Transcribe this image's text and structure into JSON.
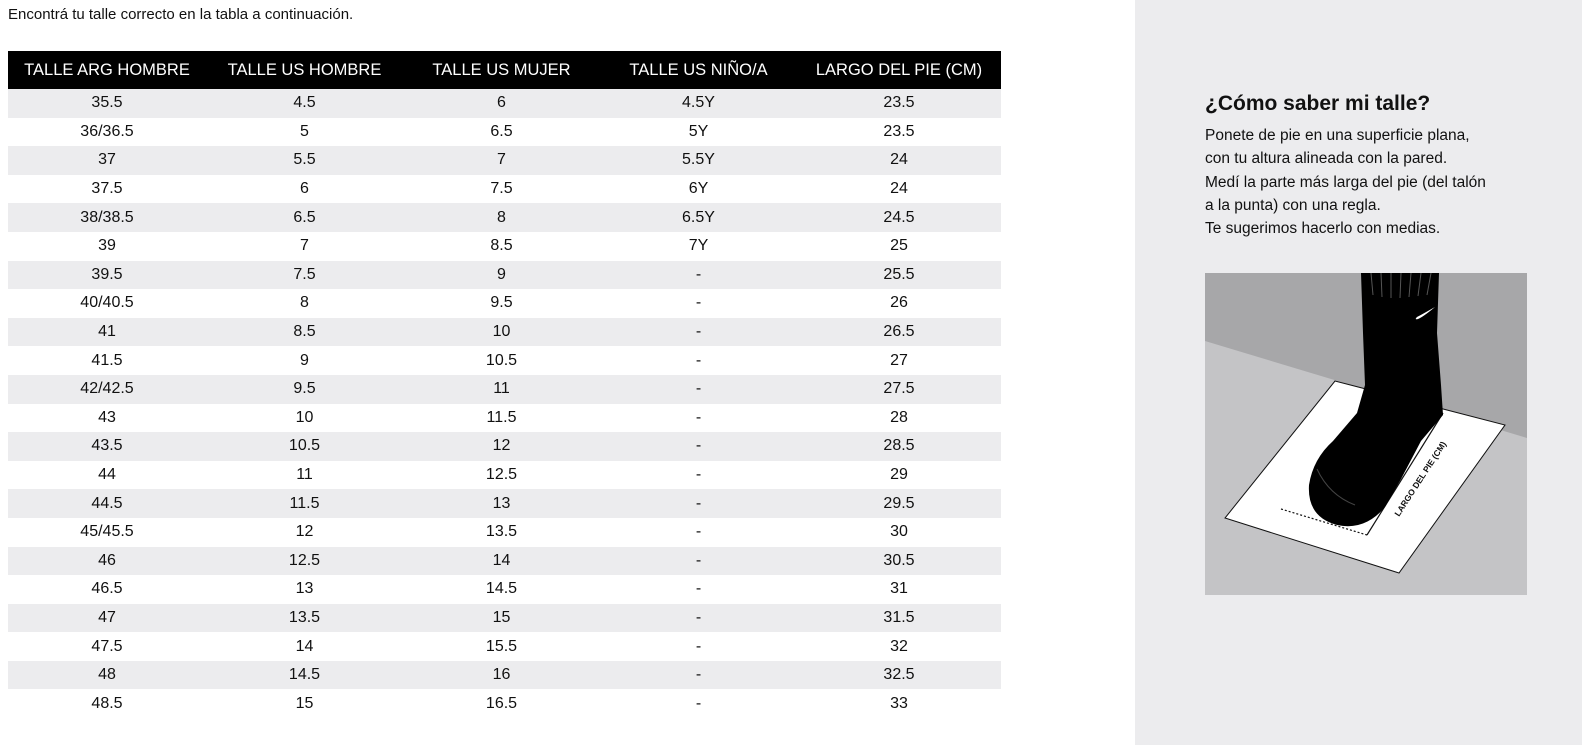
{
  "intro_text": "Encontrá tu talle correcto en la tabla a continuación.",
  "table": {
    "headers": [
      "TALLE ARG HOMBRE",
      "TALLE US HOMBRE",
      "TALLE US MUJER",
      "TALLE US NIÑO/A",
      "LARGO DEL PIE (CM)"
    ],
    "rows": [
      [
        "35.5",
        "4.5",
        "6",
        "4.5Y",
        "23.5"
      ],
      [
        "36/36.5",
        "5",
        "6.5",
        "5Y",
        "23.5"
      ],
      [
        "37",
        "5.5",
        "7",
        "5.5Y",
        "24"
      ],
      [
        "37.5",
        "6",
        "7.5",
        "6Y",
        "24"
      ],
      [
        "38/38.5",
        "6.5",
        "8",
        "6.5Y",
        "24.5"
      ],
      [
        "39",
        "7",
        "8.5",
        "7Y",
        "25"
      ],
      [
        "39.5",
        "7.5",
        "9",
        "-",
        "25.5"
      ],
      [
        "40/40.5",
        "8",
        "9.5",
        "-",
        "26"
      ],
      [
        "41",
        "8.5",
        "10",
        "-",
        "26.5"
      ],
      [
        "41.5",
        "9",
        "10.5",
        "-",
        "27"
      ],
      [
        "42/42.5",
        "9.5",
        "11",
        "-",
        "27.5"
      ],
      [
        "43",
        "10",
        "11.5",
        "-",
        "28"
      ],
      [
        "43.5",
        "10.5",
        "12",
        "-",
        "28.5"
      ],
      [
        "44",
        "11",
        "12.5",
        "-",
        "29"
      ],
      [
        "44.5",
        "11.5",
        "13",
        "-",
        "29.5"
      ],
      [
        "45/45.5",
        "12",
        "13.5",
        "-",
        "30"
      ],
      [
        "46",
        "12.5",
        "14",
        "-",
        "30.5"
      ],
      [
        "46.5",
        "13",
        "14.5",
        "-",
        "31"
      ],
      [
        "47",
        "13.5",
        "15",
        "-",
        "31.5"
      ],
      [
        "47.5",
        "14",
        "15.5",
        "-",
        "32"
      ],
      [
        "48",
        "14.5",
        "16",
        "-",
        "32.5"
      ],
      [
        "48.5",
        "15",
        "16.5",
        "-",
        "33"
      ]
    ]
  },
  "how_to": {
    "title": "¿Cómo saber mi talle?",
    "lines": [
      "Ponete de pie en una superficie plana,",
      "con tu altura alineada con la pared.",
      "Medí la parte más larga del pie (del talón",
      "a la punta) con una regla.",
      "Te sugerimos hacerlo con medias."
    ],
    "illustration_label": "LARGO DEL PIE (CM)"
  },
  "colors": {
    "header_bg": "#000000",
    "header_text": "#ffffff",
    "stripe": "#ececee",
    "panel_bg": "#ececee"
  }
}
